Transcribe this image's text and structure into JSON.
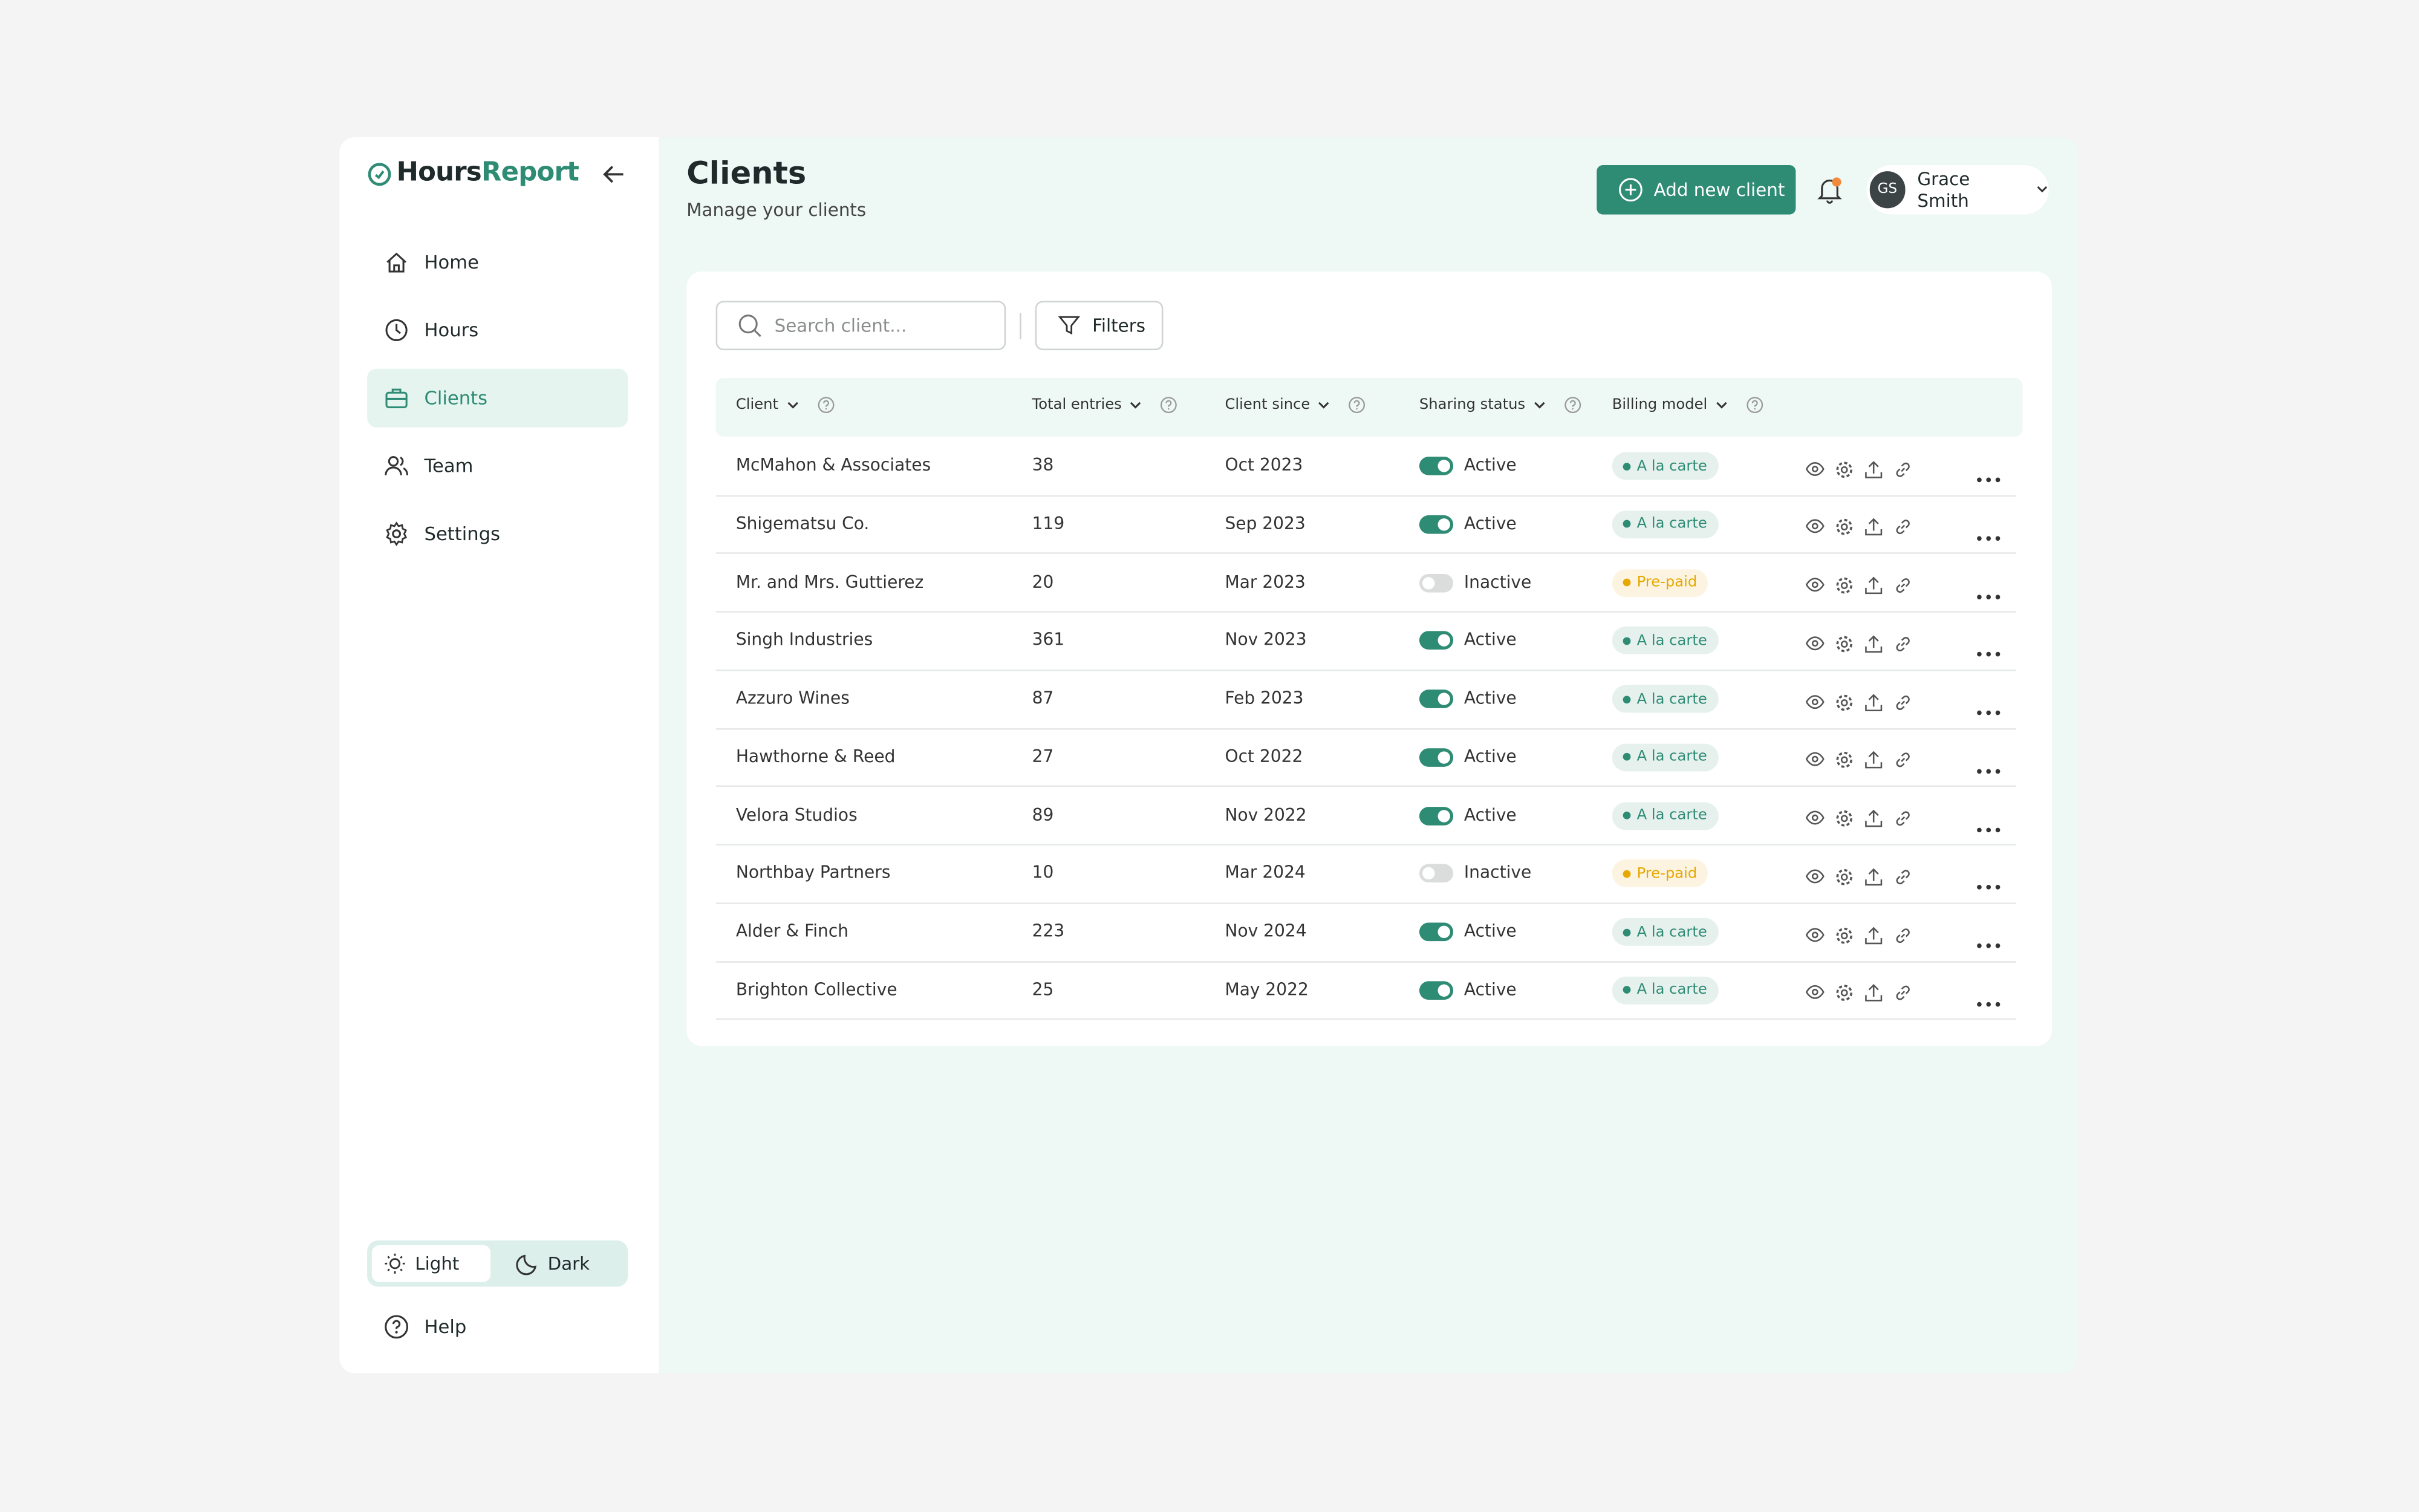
{
  "sidebar": {
    "brand": {
      "first": "Hours",
      "second": "Report"
    },
    "nav": [
      {
        "label": "Home"
      },
      {
        "label": "Hours"
      },
      {
        "label": "Clients",
        "active": true
      },
      {
        "label": "Team"
      },
      {
        "label": "Settings"
      }
    ],
    "theme": {
      "options": [
        "Light",
        "Dark"
      ],
      "selected": 0
    },
    "help": "Help"
  },
  "header": {
    "title": "Clients",
    "subtitle": "Manage your clients",
    "add_button": "Add new client",
    "user": {
      "initials": "GS",
      "name": "Grace Smith"
    }
  },
  "toolbar": {
    "search_placeholder": "Search client...",
    "filters": "Filters"
  },
  "table": {
    "columns": [
      "Client",
      "Total entries",
      "Client since",
      "Sharing status",
      "Billing model"
    ],
    "rows": [
      {
        "client": "McMahon & Associates",
        "entries": 38,
        "since": "Oct 2023",
        "status": "Active",
        "sharing_on": true,
        "billing": "A la carte",
        "billing_color": "#2e8b74"
      },
      {
        "client": "Shigematsu Co.",
        "entries": 119,
        "since": "Sep 2023",
        "status": "Active",
        "sharing_on": true,
        "billing": "A la carte",
        "billing_color": "#2e8b74"
      },
      {
        "client": "Mr. and Mrs. Guttierez",
        "entries": 20,
        "since": "Mar 2023",
        "status": "Inactive",
        "sharing_on": false,
        "billing": "Pre-paid",
        "billing_color": "#e6a700"
      },
      {
        "client": "Singh Industries",
        "entries": 361,
        "since": "Nov 2023",
        "status": "Active",
        "sharing_on": true,
        "billing": "A la carte",
        "billing_color": "#2e8b74"
      },
      {
        "client": "Azzuro Wines",
        "entries": 87,
        "since": "Feb 2023",
        "status": "Active",
        "sharing_on": true,
        "billing": "A la carte",
        "billing_color": "#2e8b74"
      },
      {
        "client": "Hawthorne & Reed",
        "entries": 27,
        "since": "Oct 2022",
        "status": "Active",
        "sharing_on": true,
        "billing": "A la carte",
        "billing_color": "#2e8b74"
      },
      {
        "client": "Velora Studios",
        "entries": 89,
        "since": "Nov 2022",
        "status": "Active",
        "sharing_on": true,
        "billing": "A la carte",
        "billing_color": "#2e8b74"
      },
      {
        "client": "Northbay Partners",
        "entries": 10,
        "since": "Mar 2024",
        "status": "Inactive",
        "sharing_on": false,
        "billing": "Pre-paid",
        "billing_color": "#e6a700"
      },
      {
        "client": "Alder & Finch",
        "entries": 223,
        "since": "Nov 2024",
        "status": "Active",
        "sharing_on": true,
        "billing": "A la carte",
        "billing_color": "#2e8b74"
      },
      {
        "client": "Brighton Collective",
        "entries": 25,
        "since": "May 2022",
        "status": "Active",
        "sharing_on": true,
        "billing": "A la carte",
        "billing_color": "#2e8b74"
      }
    ]
  }
}
